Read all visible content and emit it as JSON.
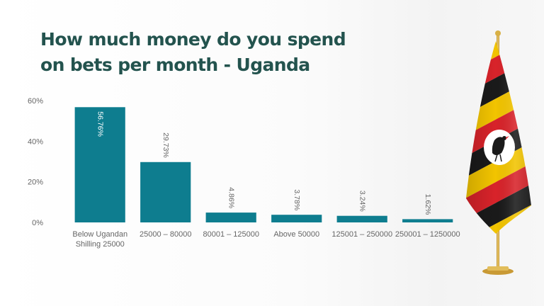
{
  "title": "How much money do you spend on bets per month - Uganda",
  "chart_data": {
    "type": "bar",
    "title": "How much money do you spend on bets per month - Uganda",
    "categories": [
      "Below Ugandan Shilling 25000",
      "25000 – 80000",
      "80001 – 125000",
      "Above 50000",
      "125001 – 250000",
      "250001 – 1250000"
    ],
    "category_lines": [
      [
        "Below Ugandan",
        "Shilling 25000"
      ],
      [
        "25000 – 80000"
      ],
      [
        "80001 – 125000"
      ],
      [
        "Above 50000"
      ],
      [
        "125001 – 250000"
      ],
      [
        "250001 – 1250000"
      ]
    ],
    "values": [
      56.76,
      29.73,
      4.86,
      3.78,
      3.24,
      1.62
    ],
    "value_labels": [
      "56.76%",
      "29.73%",
      "4.86%",
      "3.78%",
      "3.24%",
      "1.62%"
    ],
    "y_ticks": [
      0,
      20,
      40,
      60
    ],
    "y_tick_labels": [
      "0%",
      "20%",
      "40%",
      "60%"
    ],
    "ylim": [
      0,
      60
    ],
    "xlabel": "",
    "ylabel": "",
    "grid": false,
    "legend": "none",
    "bar_color": "#0e7d8f"
  },
  "colors": {
    "title": "#23534e",
    "bar": "#0e7d8f",
    "axis_text": "#666666",
    "flag_black": "#1a1a1a",
    "flag_yellow": "#f2c400",
    "flag_red": "#d8232a",
    "pole_gold": "#d8b046"
  },
  "decoration": {
    "flag": "uganda-flag-icon"
  }
}
